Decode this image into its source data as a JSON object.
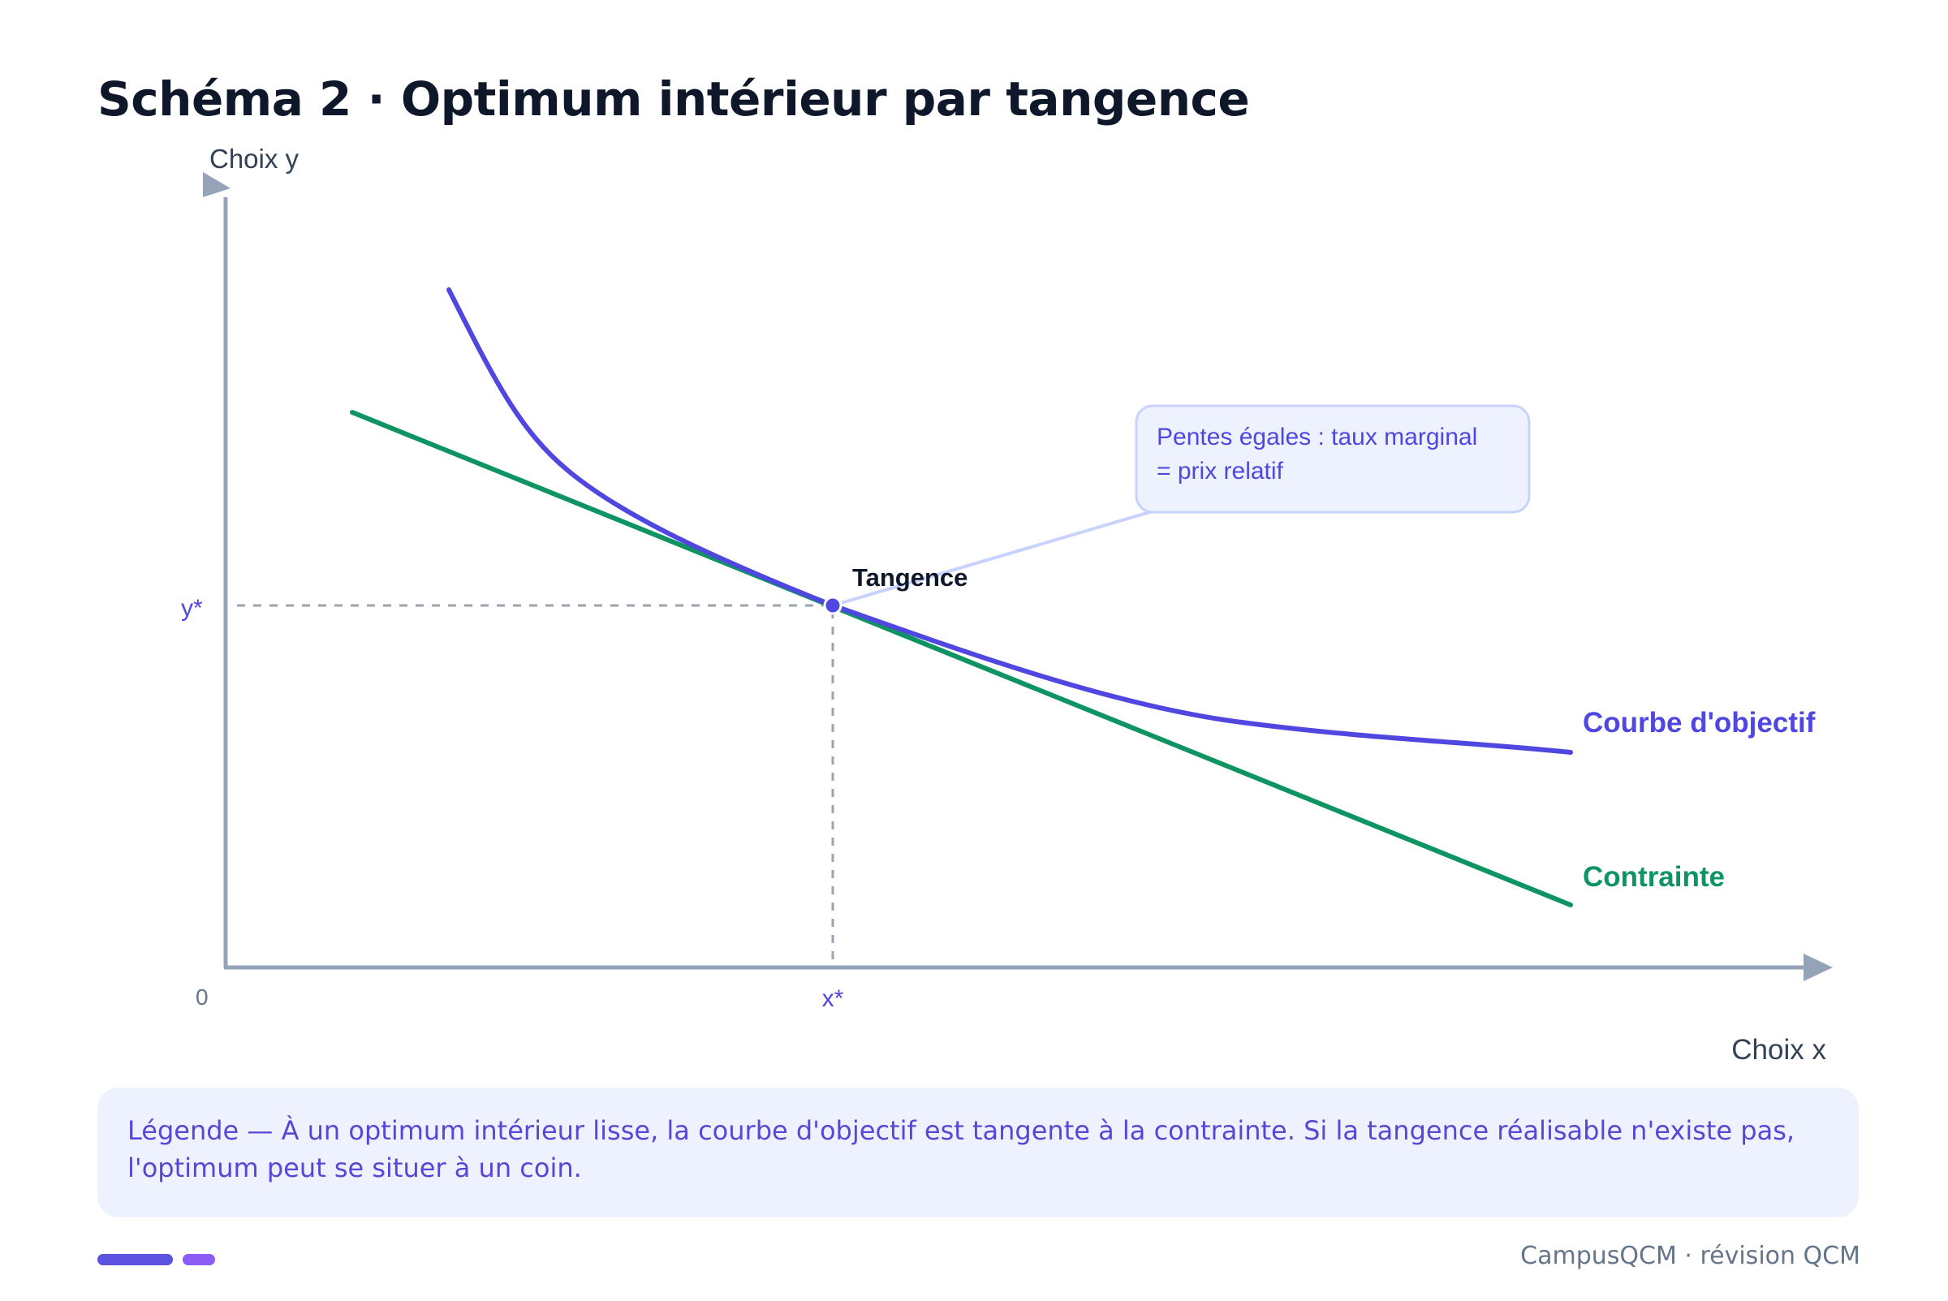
{
  "title": "Schéma 2 · Optimum intérieur par tangence",
  "axes": {
    "y_label": "Choix y",
    "x_label": "Choix x",
    "origin_label": "0",
    "y_star_label": "y*",
    "x_star_label": "x*"
  },
  "curves": {
    "objective_label": "Courbe d'objectif",
    "constraint_label": "Contrainte"
  },
  "point": {
    "label": "Tangence"
  },
  "callout": {
    "line1": "Pentes égales : taux marginal",
    "line2": "= prix relatif"
  },
  "legend": {
    "text": "Légende — À un optimum intérieur lisse, la courbe d'objectif est tangente à la contrainte. Si la tangence réalisable n'existe pas, l'optimum peut se situer à un coin."
  },
  "footer": "CampusQCM · révision QCM",
  "colors": {
    "title": "#0f172a",
    "axis": "#94a3b8",
    "objective": "#5046e0",
    "constraint": "#0e9462",
    "callout_bg": "#eef2ff",
    "callout_border": "#c7d2fe",
    "legend_text": "#5b45d6",
    "muted": "#64748b"
  }
}
